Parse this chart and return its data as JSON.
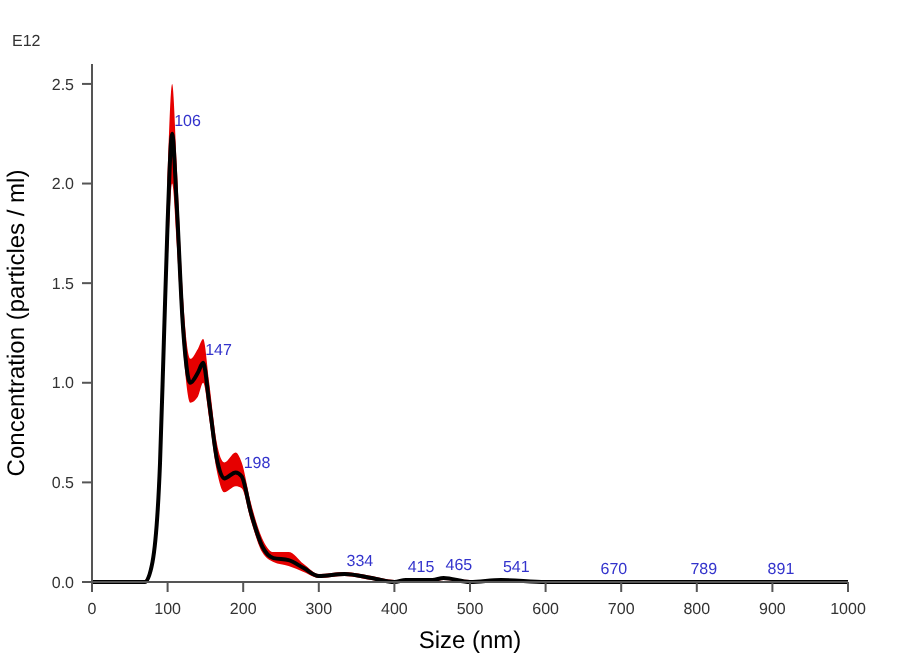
{
  "chart_data": {
    "type": "line",
    "xlabel": "Size (nm)",
    "ylabel": "Concentration (particles / ml)",
    "x": [
      0,
      50,
      70,
      80,
      90,
      95,
      100,
      106,
      112,
      120,
      130,
      140,
      147,
      155,
      165,
      175,
      190,
      198,
      210,
      225,
      240,
      260,
      280,
      300,
      334,
      370,
      400,
      415,
      450,
      465,
      500,
      541,
      600,
      670,
      789,
      891,
      1000
    ],
    "series": [
      {
        "color": "#000000",
        "values": [
          0,
          0,
          0,
          0.1,
          0.6,
          1.2,
          1.8,
          2.25,
          1.9,
          1.3,
          1.0,
          1.05,
          1.1,
          0.9,
          0.62,
          0.52,
          0.55,
          0.53,
          0.35,
          0.18,
          0.12,
          0.11,
          0.07,
          0.03,
          0.04,
          0.02,
          0,
          0.01,
          0.01,
          0.02,
          0,
          0.01,
          0,
          0,
          0,
          0,
          0
        ],
        "lower": [
          0,
          0,
          0,
          0.08,
          0.5,
          1.05,
          1.6,
          2.0,
          1.7,
          1.2,
          0.9,
          0.93,
          1.0,
          0.82,
          0.56,
          0.45,
          0.48,
          0.47,
          0.31,
          0.15,
          0.1,
          0.08,
          0.05,
          0.02,
          0.03,
          0.01,
          0,
          0,
          0,
          0.01,
          0,
          0,
          0,
          0,
          0,
          0,
          0
        ],
        "upper": [
          0,
          0,
          0.01,
          0.12,
          0.7,
          1.35,
          2.0,
          2.5,
          2.1,
          1.45,
          1.12,
          1.17,
          1.22,
          1.0,
          0.7,
          0.6,
          0.65,
          0.6,
          0.4,
          0.22,
          0.15,
          0.15,
          0.09,
          0.04,
          0.05,
          0.03,
          0.01,
          0.01,
          0.02,
          0.02,
          0.01,
          0.01,
          0,
          0,
          0,
          0,
          0.01
        ]
      }
    ],
    "xlim": [
      0,
      1000
    ],
    "xticks": [
      0,
      100,
      200,
      300,
      400,
      500,
      600,
      700,
      800,
      900,
      1000
    ],
    "ylim": [
      0,
      2.6
    ],
    "yticks": [
      {
        "value": 0,
        "label": "0.0"
      },
      0.5,
      {
        "value": 1,
        "label": "1.0"
      },
      1.5,
      {
        "value": 2,
        "label": "2.0"
      },
      2.5
    ],
    "annotations": [
      "E12",
      {
        "text": "106",
        "x": 106,
        "y": 2.25
      },
      {
        "text": "147",
        "x": 147,
        "y": 1.1
      },
      {
        "text": "198",
        "x": 198,
        "y": 0.53
      },
      {
        "text": "334",
        "x": 334,
        "y": 0.04
      },
      {
        "text": "415",
        "x": 415,
        "y": 0.01
      },
      {
        "text": "465",
        "x": 465,
        "y": 0.02
      },
      {
        "text": "541",
        "x": 541,
        "y": 0.01
      },
      {
        "text": "670",
        "x": 670,
        "y": 0
      },
      {
        "text": "789",
        "x": 789,
        "y": 0
      },
      {
        "text": "891",
        "x": 891,
        "y": 0
      }
    ]
  }
}
